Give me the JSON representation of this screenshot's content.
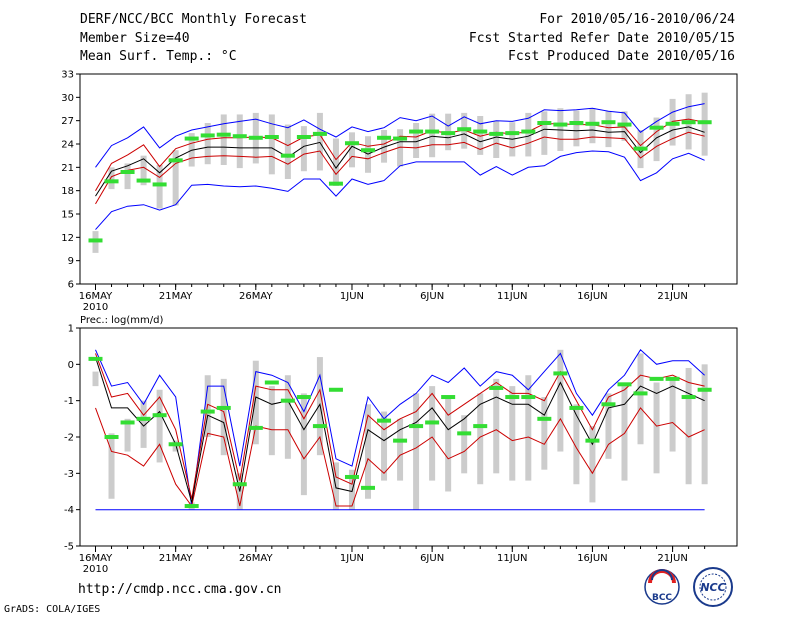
{
  "header": {
    "title": "DERF/NCC/BCC Monthly Forecast",
    "member": "Member Size=40",
    "variable": "Mean Surf. Temp.: °C",
    "period": "For 2010/05/16-2010/06/24",
    "started": "Fcst Started Refer Date 2010/05/15",
    "produced": "Fcst Produced Date 2010/05/16"
  },
  "footer": {
    "url": "http://cmdp.ncc.cma.gov.cn",
    "grads": "GrADS: COLA/IGES",
    "logo1": "BCC",
    "logo2": "NCC"
  },
  "colors": {
    "max_min": "#0000ff",
    "pct": "#cc0000",
    "median": "#000000",
    "box": "#cccccc",
    "obs": "#33dd33"
  },
  "chart_data": [
    {
      "type": "box-ensemble",
      "title": "Mean Surf. Temp.: °C",
      "ylim": [
        6,
        33
      ],
      "yticks": [
        "33",
        "30",
        "27",
        "24",
        "21",
        "18",
        "15",
        "12",
        "9",
        "6"
      ],
      "xtick_labels": [
        "16MAY",
        "21MAY",
        "26MAY",
        "1JUN",
        "6JUN",
        "11JUN",
        "16JUN",
        "21JUN"
      ],
      "xtick_days": [
        0,
        5,
        10,
        16,
        21,
        26,
        31,
        36
      ],
      "year_label": "2010",
      "max": [
        21.0,
        23.8,
        24.8,
        26.2,
        23.5,
        25.0,
        25.8,
        26.2,
        26.6,
        26.9,
        27.2,
        26.6,
        26.1,
        27.1,
        25.9,
        24.9,
        26.2,
        25.6,
        26.1,
        27.4,
        27.0,
        27.6,
        26.3,
        27.5,
        26.6,
        27.0,
        26.9,
        27.3,
        28.4,
        28.3,
        28.4,
        28.6,
        28.2,
        28.0,
        25.5,
        26.9,
        28.1,
        28.8,
        29.2
      ],
      "p90": [
        18.0,
        21.5,
        22.6,
        23.9,
        21.1,
        23.4,
        24.1,
        24.6,
        24.8,
        24.8,
        24.9,
        24.8,
        23.8,
        24.9,
        25.2,
        22.0,
        24.2,
        23.7,
        24.0,
        25.0,
        24.9,
        25.7,
        25.4,
        25.8,
        25.0,
        25.5,
        25.3,
        25.6,
        26.6,
        26.6,
        26.5,
        26.5,
        26.1,
        26.2,
        23.8,
        25.6,
        26.9,
        27.2,
        26.8
      ],
      "median": [
        17.3,
        20.5,
        21.2,
        22.1,
        20.3,
        22.2,
        23.2,
        23.6,
        23.6,
        23.5,
        23.5,
        23.5,
        22.3,
        23.7,
        24.2,
        20.9,
        23.7,
        22.7,
        23.6,
        24.3,
        24.3,
        25.0,
        24.8,
        25.3,
        24.3,
        24.9,
        24.6,
        25.0,
        25.9,
        25.8,
        25.7,
        25.8,
        25.5,
        25.6,
        22.9,
        24.8,
        25.8,
        26.2,
        25.5
      ],
      "p10": [
        16.3,
        19.8,
        20.6,
        21.0,
        19.7,
        21.5,
        22.2,
        22.4,
        22.5,
        22.4,
        22.3,
        22.4,
        21.4,
        22.7,
        23.1,
        20.1,
        22.4,
        22.1,
        22.9,
        23.6,
        23.5,
        23.9,
        23.9,
        24.2,
        23.3,
        24.1,
        23.5,
        24.1,
        24.9,
        24.6,
        24.6,
        24.9,
        24.8,
        24.7,
        22.2,
        23.7,
        24.7,
        25.5,
        25.0
      ],
      "min": [
        13.0,
        15.3,
        16.0,
        16.2,
        15.5,
        16.2,
        18.7,
        18.8,
        18.6,
        18.5,
        18.6,
        18.3,
        17.9,
        19.5,
        19.5,
        17.3,
        19.5,
        18.8,
        19.3,
        21.2,
        21.7,
        21.7,
        21.7,
        21.7,
        20.0,
        21.1,
        20.0,
        21.0,
        21.2,
        22.4,
        22.9,
        23.1,
        23.0,
        22.3,
        19.3,
        20.3,
        22.1,
        22.8,
        21.9
      ],
      "box_hi": [
        12.8,
        21.0,
        21.5,
        22.5,
        21.3,
        23.2,
        25.4,
        26.7,
        27.8,
        27.8,
        28.0,
        27.8,
        26.5,
        26.3,
        28.0,
        24.7,
        25.5,
        25.0,
        25.8,
        25.9,
        26.7,
        27.9,
        27.9,
        28.0,
        27.6,
        26.9,
        26.8,
        28.0,
        28.2,
        28.6,
        28.3,
        28.6,
        28.2,
        28.2,
        25.8,
        27.4,
        29.8,
        30.4,
        30.6
      ],
      "box_lo": [
        10.0,
        18.2,
        18.2,
        18.7,
        15.7,
        16.1,
        21.1,
        21.4,
        21.3,
        20.9,
        21.5,
        20.1,
        19.5,
        20.5,
        20.6,
        18.6,
        21.0,
        20.3,
        21.6,
        21.1,
        22.2,
        22.3,
        23.2,
        23.4,
        22.6,
        22.2,
        22.4,
        22.4,
        22.6,
        23.1,
        23.7,
        24.1,
        23.6,
        24.4,
        20.9,
        21.8,
        23.8,
        23.3,
        22.5
      ],
      "obs": [
        11.6,
        19.2,
        20.4,
        19.3,
        18.8,
        21.9,
        24.7,
        25.1,
        25.2,
        25.0,
        24.8,
        24.9,
        22.5,
        24.9,
        25.3,
        18.9,
        24.1,
        23.2,
        24.8,
        24.7,
        25.6,
        25.6,
        25.4,
        25.9,
        25.6,
        25.3,
        25.4,
        25.6,
        26.7,
        26.5,
        26.7,
        26.6,
        26.8,
        26.5,
        23.4,
        26.1,
        26.6,
        26.8,
        26.8
      ]
    },
    {
      "type": "box-ensemble",
      "title": "Prec.: log(mm/d)",
      "ylim": [
        -5,
        1
      ],
      "yticks": [
        "1",
        "0",
        "-1",
        "-2",
        "-3",
        "-4",
        "-5"
      ],
      "xtick_labels": [
        "16MAY",
        "21MAY",
        "26MAY",
        "1JUN",
        "6JUN",
        "11JUN",
        "16JUN",
        "21JUN"
      ],
      "xtick_days": [
        0,
        5,
        10,
        16,
        21,
        26,
        31,
        36
      ],
      "year_label": "2010",
      "max": [
        0.4,
        -0.6,
        -0.5,
        -1.1,
        -0.3,
        -0.9,
        -3.9,
        -0.6,
        -0.6,
        -2.8,
        -0.2,
        -0.3,
        -0.5,
        -1.3,
        -0.3,
        -2.6,
        -2.8,
        -0.9,
        -1.5,
        -1.1,
        -0.8,
        -0.3,
        -0.5,
        -0.1,
        -0.6,
        -0.2,
        -0.3,
        -0.7,
        -0.2,
        0.3,
        -0.8,
        -1.4,
        -0.7,
        -0.3,
        0.4,
        0.0,
        0.1,
        0.1,
        -0.3
      ],
      "median": [
        0.2,
        -1.2,
        -1.2,
        -1.7,
        -1.3,
        -2.2,
        -3.8,
        -1.4,
        -1.6,
        -3.5,
        -0.9,
        -1.1,
        -1.0,
        -1.8,
        -1.1,
        -3.4,
        -3.5,
        -1.8,
        -2.1,
        -1.8,
        -1.6,
        -1.2,
        -1.8,
        -1.5,
        -1.1,
        -0.9,
        -1.1,
        -1.1,
        -1.4,
        -0.5,
        -1.4,
        -2.2,
        -1.2,
        -1.1,
        -0.6,
        -0.8,
        -0.6,
        -0.8,
        -1.0
      ],
      "p10": [
        -1.2,
        -2.4,
        -2.5,
        -2.8,
        -2.2,
        -3.3,
        -3.9,
        -1.9,
        -2.0,
        -3.9,
        -1.7,
        -1.8,
        -1.8,
        -2.6,
        -2.0,
        -3.9,
        -3.9,
        -2.6,
        -3.0,
        -2.5,
        -2.3,
        -2.0,
        -2.6,
        -2.4,
        -2.0,
        -1.8,
        -2.1,
        -2.0,
        -2.2,
        -1.5,
        -2.3,
        -3.0,
        -2.2,
        -1.9,
        -1.2,
        -1.7,
        -1.6,
        -2.0,
        -1.8
      ],
      "p90": [
        0.3,
        -0.9,
        -0.8,
        -1.4,
        -0.9,
        -1.8,
        -3.7,
        -1.1,
        -1.3,
        -3.2,
        -0.6,
        -0.7,
        -0.7,
        -1.5,
        -0.7,
        -3.1,
        -3.3,
        -1.4,
        -1.8,
        -1.5,
        -1.3,
        -0.8,
        -1.4,
        -1.1,
        -0.8,
        -0.5,
        -0.8,
        -0.8,
        -1.0,
        -0.2,
        -1.0,
        -1.8,
        -0.9,
        -0.7,
        -0.3,
        -0.4,
        -0.3,
        -0.5,
        -0.6
      ],
      "min": [
        -4.0,
        -4.0,
        -4.0,
        -4.0,
        -4.0,
        -4.0,
        -4.0,
        -4.0,
        -4.0,
        -4.0,
        -4.0,
        -4.0,
        -4.0,
        -4.0,
        -4.0,
        -4.0,
        -4.0,
        -4.0,
        -4.0,
        -4.0,
        -4.0,
        -4.0,
        -4.0,
        -4.0,
        -4.0,
        -4.0,
        -4.0,
        -4.0,
        -4.0,
        -4.0,
        -4.0,
        -4.0,
        -4.0,
        -4.0,
        -4.0,
        -4.0,
        -4.0,
        -4.0,
        -4.0
      ],
      "box_hi": [
        -0.2,
        -1.9,
        -1.5,
        -1.0,
        -0.7,
        -2.1,
        -3.8,
        -0.3,
        -0.4,
        -3.0,
        0.1,
        -0.6,
        -0.3,
        -0.8,
        0.2,
        -2.7,
        -2.9,
        -1.1,
        -1.3,
        -1.5,
        -0.8,
        -0.6,
        -0.9,
        -1.4,
        -0.8,
        -0.4,
        -0.6,
        -0.3,
        -0.9,
        0.4,
        -1.1,
        -1.7,
        -0.8,
        -0.6,
        0.3,
        -0.5,
        -0.4,
        -0.1,
        0.0
      ],
      "box_lo": [
        -0.6,
        -3.7,
        -2.4,
        -2.3,
        -2.7,
        -2.4,
        -4.0,
        -2.0,
        -2.5,
        -4.0,
        -2.2,
        -2.5,
        -2.6,
        -3.6,
        -2.5,
        -4.0,
        -4.0,
        -3.7,
        -3.2,
        -3.2,
        -4.0,
        -3.2,
        -3.5,
        -3.0,
        -3.3,
        -3.0,
        -3.2,
        -3.2,
        -2.9,
        -2.4,
        -3.3,
        -3.8,
        -2.6,
        -3.2,
        -2.2,
        -3.0,
        -2.4,
        -3.3,
        -3.3
      ],
      "obs": [
        0.15,
        -2.0,
        -1.6,
        -1.5,
        -1.4,
        -2.2,
        -3.9,
        -1.3,
        -1.2,
        -3.3,
        -1.75,
        -0.5,
        -1.0,
        -0.9,
        -1.7,
        -0.7,
        -3.1,
        -3.4,
        -1.55,
        -2.1,
        -1.7,
        -1.6,
        -0.9,
        -1.9,
        -1.7,
        -0.65,
        -0.9,
        -0.9,
        -1.5,
        -0.25,
        -1.2,
        -2.1,
        -1.1,
        -0.55,
        -0.8,
        -0.4,
        -0.4,
        -0.9,
        -0.7
      ]
    }
  ]
}
